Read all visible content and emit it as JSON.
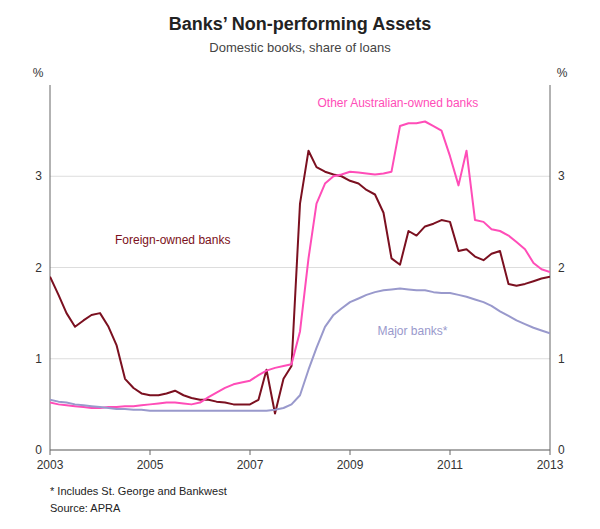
{
  "chart_data": {
    "type": "line",
    "title": "Banks’ Non-performing Assets",
    "subtitle": "Domestic books, share of loans",
    "ylabel": "%",
    "y2label": "%",
    "footnotes": [
      "*    Includes St. George and Bankwest",
      "Source: APRA"
    ],
    "xlim": [
      2003.0,
      2013.0
    ],
    "xticks": [
      2003,
      2005,
      2007,
      2009,
      2011,
      2013
    ],
    "ylim": [
      0,
      4.0
    ],
    "yticks": [
      0,
      1,
      2,
      3
    ],
    "y2lim": [
      0,
      4.0
    ],
    "y2ticks": [
      0,
      1,
      2,
      3
    ],
    "grid": true,
    "x": [
      2003.0,
      2003.17,
      2003.33,
      2003.5,
      2003.67,
      2003.83,
      2004.0,
      2004.17,
      2004.33,
      2004.5,
      2004.67,
      2004.83,
      2005.0,
      2005.17,
      2005.33,
      2005.5,
      2005.67,
      2005.83,
      2006.0,
      2006.17,
      2006.33,
      2006.5,
      2006.67,
      2006.83,
      2007.0,
      2007.17,
      2007.33,
      2007.5,
      2007.67,
      2007.83,
      2008.0,
      2008.17,
      2008.33,
      2008.5,
      2008.67,
      2008.83,
      2009.0,
      2009.17,
      2009.33,
      2009.5,
      2009.67,
      2009.83,
      2010.0,
      2010.17,
      2010.33,
      2010.5,
      2010.67,
      2010.83,
      2011.0,
      2011.17,
      2011.33,
      2011.5,
      2011.67,
      2011.83,
      2012.0,
      2012.17,
      2012.33,
      2012.5,
      2012.67,
      2012.83,
      2013.0
    ],
    "series": [
      {
        "name": "Foreign-owned banks",
        "color": "#7b1020",
        "values": [
          1.9,
          1.7,
          1.5,
          1.35,
          1.42,
          1.48,
          1.5,
          1.35,
          1.15,
          0.78,
          0.68,
          0.62,
          0.6,
          0.6,
          0.62,
          0.65,
          0.6,
          0.57,
          0.55,
          0.55,
          0.53,
          0.52,
          0.5,
          0.5,
          0.5,
          0.55,
          0.88,
          0.4,
          0.78,
          0.92,
          2.7,
          3.28,
          3.1,
          3.05,
          3.02,
          3.0,
          2.95,
          2.92,
          2.85,
          2.8,
          2.6,
          2.1,
          2.03,
          2.4,
          2.35,
          2.45,
          2.48,
          2.52,
          2.5,
          2.18,
          2.2,
          2.12,
          2.08,
          2.15,
          2.18,
          1.82,
          1.8,
          1.82,
          1.85,
          1.88,
          1.9
        ]
      },
      {
        "name": "Other Australian-owned banks",
        "color": "#ff4db8",
        "values": [
          0.52,
          0.5,
          0.49,
          0.48,
          0.47,
          0.46,
          0.46,
          0.47,
          0.47,
          0.48,
          0.48,
          0.49,
          0.5,
          0.51,
          0.52,
          0.52,
          0.51,
          0.5,
          0.52,
          0.58,
          0.63,
          0.68,
          0.72,
          0.74,
          0.76,
          0.82,
          0.87,
          0.9,
          0.92,
          0.94,
          1.3,
          2.1,
          2.7,
          2.92,
          3.0,
          3.02,
          3.05,
          3.04,
          3.03,
          3.02,
          3.03,
          3.05,
          3.55,
          3.58,
          3.58,
          3.6,
          3.55,
          3.5,
          3.22,
          2.9,
          3.28,
          2.52,
          2.5,
          2.42,
          2.4,
          2.35,
          2.28,
          2.2,
          2.05,
          1.98,
          1.95
        ]
      },
      {
        "name": "Major banks*",
        "color": "#9999cc",
        "values": [
          0.55,
          0.53,
          0.52,
          0.5,
          0.49,
          0.48,
          0.47,
          0.46,
          0.45,
          0.45,
          0.44,
          0.44,
          0.43,
          0.43,
          0.43,
          0.43,
          0.43,
          0.43,
          0.43,
          0.43,
          0.43,
          0.43,
          0.43,
          0.43,
          0.43,
          0.43,
          0.43,
          0.44,
          0.46,
          0.5,
          0.6,
          0.88,
          1.12,
          1.35,
          1.48,
          1.55,
          1.62,
          1.66,
          1.7,
          1.73,
          1.75,
          1.76,
          1.77,
          1.76,
          1.75,
          1.75,
          1.73,
          1.72,
          1.72,
          1.7,
          1.68,
          1.65,
          1.62,
          1.58,
          1.52,
          1.47,
          1.42,
          1.38,
          1.34,
          1.31,
          1.28
        ]
      }
    ]
  }
}
